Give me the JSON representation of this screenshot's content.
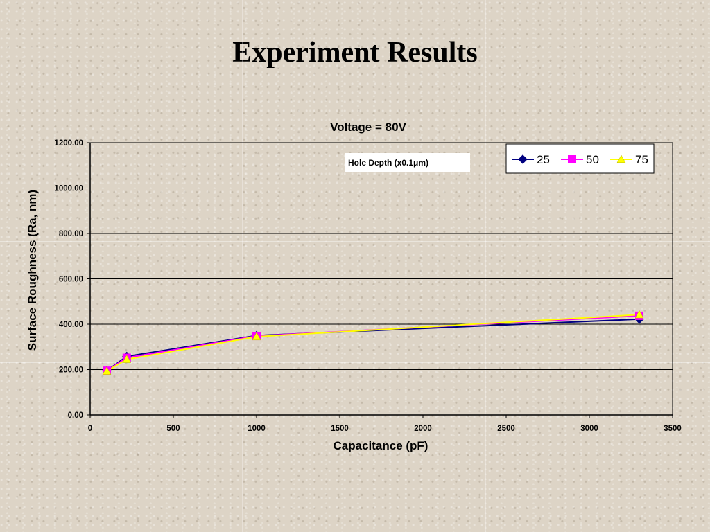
{
  "slide": {
    "title": "Experiment Results"
  },
  "chart_data": {
    "type": "scatter",
    "title": "Voltage = 80V",
    "xlabel": "Capacitance (pF)",
    "ylabel": "Surface Roughness (Ra, nm)",
    "xlim": [
      0,
      3500
    ],
    "ylim": [
      0,
      1200
    ],
    "xticks": [
      0,
      500,
      1000,
      1500,
      2000,
      2500,
      3000,
      3500
    ],
    "xtick_labels": [
      "0",
      "500",
      "1000",
      "1500",
      "2000",
      "2500",
      "3000",
      "3500"
    ],
    "yticks": [
      0,
      200,
      400,
      600,
      800,
      1000,
      1200
    ],
    "ytick_labels": [
      "0.00",
      "200.00",
      "400.00",
      "600.00",
      "800.00",
      "1000.00",
      "1200.00"
    ],
    "grid": "horizontal",
    "legend_position": "top-right",
    "annotation": "Hole Depth (x0.1μm)",
    "x": [
      100,
      220,
      1000,
      3300
    ],
    "series": [
      {
        "name": "25",
        "color": "#000080",
        "marker": "diamond",
        "values": [
          195,
          258,
          350,
          422
        ]
      },
      {
        "name": "50",
        "color": "#ff00ff",
        "marker": "square",
        "values": [
          195,
          252,
          348,
          437
        ]
      },
      {
        "name": "75",
        "color": "#ffff00",
        "marker": "triangle",
        "values": [
          193,
          245,
          345,
          442
        ]
      }
    ]
  }
}
